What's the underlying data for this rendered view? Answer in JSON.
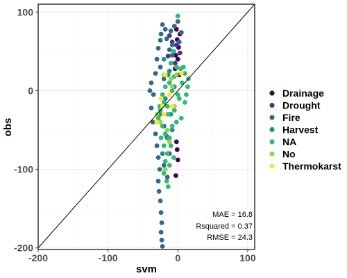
{
  "chart_data": {
    "type": "scatter",
    "title": "",
    "xlabel": "svm",
    "ylabel": "obs",
    "xlim": [
      -200,
      110
    ],
    "ylim": [
      -202,
      110
    ],
    "x_ticks": [
      -200,
      -100,
      0,
      100
    ],
    "y_ticks": [
      -200,
      -100,
      0,
      100
    ],
    "grid": true,
    "reference_line": "y = x",
    "legend_position": "right",
    "stats": [
      "MAE = 16.8",
      "Rsquared = 0.37",
      "RMSE = 24.3"
    ],
    "series": [
      {
        "name": "Drainage",
        "color": "#440154",
        "points": [
          [
            -2,
            78
          ],
          [
            3,
            72
          ],
          [
            -1,
            65
          ],
          [
            1,
            55
          ],
          [
            -3,
            45
          ],
          [
            0,
            40
          ],
          [
            -4,
            28
          ],
          [
            2,
            20
          ],
          [
            -2,
            -65
          ],
          [
            0,
            -88
          ],
          [
            -1,
            -75
          ],
          [
            -3,
            -108
          ]
        ]
      },
      {
        "name": "Drought",
        "color": "#443A83",
        "points": [
          [
            -12,
            70
          ],
          [
            -8,
            62
          ],
          [
            -6,
            50
          ],
          [
            -14,
            44
          ],
          [
            -4,
            35
          ],
          [
            -20,
            -45
          ],
          [
            -16,
            -58
          ],
          [
            -2,
            58
          ],
          [
            3,
            48
          ]
        ]
      },
      {
        "name": "Fire",
        "color": "#31688E",
        "points": [
          [
            -22,
            84
          ],
          [
            -18,
            78
          ],
          [
            -24,
            72
          ],
          [
            -25,
            64
          ],
          [
            -28,
            54
          ],
          [
            -16,
            66
          ],
          [
            -10,
            76
          ],
          [
            -5,
            82
          ],
          [
            0,
            88
          ],
          [
            5,
            74
          ],
          [
            2,
            62
          ],
          [
            -8,
            58
          ],
          [
            -12,
            52
          ],
          [
            -30,
            40
          ],
          [
            -32,
            22
          ],
          [
            -38,
            10
          ],
          [
            -40,
            0
          ],
          [
            -35,
            -5
          ],
          [
            -38,
            -22
          ],
          [
            -36,
            -40
          ],
          [
            -32,
            -55
          ],
          [
            -30,
            -70
          ],
          [
            -28,
            -85
          ],
          [
            -26,
            -100
          ],
          [
            -28,
            -115
          ],
          [
            -27,
            -128
          ],
          [
            -25,
            -140
          ],
          [
            -24,
            -155
          ],
          [
            -23,
            -168
          ],
          [
            -24,
            -180
          ],
          [
            -23,
            -190
          ],
          [
            -22,
            -198
          ],
          [
            -15,
            -110
          ],
          [
            -20,
            -95
          ],
          [
            -12,
            -80
          ],
          [
            -25,
            30
          ],
          [
            -20,
            15
          ],
          [
            -8,
            45
          ]
        ]
      },
      {
        "name": "Harvest",
        "color": "#21908C",
        "points": [
          [
            -20,
            40
          ],
          [
            -14,
            20
          ],
          [
            -18,
            -10
          ],
          [
            -10,
            -30
          ],
          [
            -15,
            -60
          ],
          [
            -22,
            -80
          ],
          [
            -8,
            -50
          ],
          [
            -5,
            5
          ],
          [
            -25,
            -30
          ],
          [
            -12,
            25
          ]
        ]
      },
      {
        "name": "NA",
        "color": "#35B779",
        "points": [
          [
            0,
            95
          ],
          [
            -6,
            50
          ],
          [
            -10,
            35
          ],
          [
            -2,
            30
          ],
          [
            4,
            28
          ],
          [
            8,
            30
          ],
          [
            10,
            22
          ],
          [
            15,
            15
          ],
          [
            14,
            5
          ],
          [
            12,
            -5
          ],
          [
            10,
            -15
          ],
          [
            -5,
            18
          ],
          [
            -12,
            10
          ],
          [
            -18,
            5
          ],
          [
            -22,
            -5
          ],
          [
            -20,
            -15
          ],
          [
            -15,
            -20
          ],
          [
            -25,
            -25
          ],
          [
            -28,
            -35
          ],
          [
            -22,
            -45
          ],
          [
            -18,
            -55
          ],
          [
            -12,
            -60
          ],
          [
            -20,
            -70
          ],
          [
            -15,
            -80
          ],
          [
            -18,
            -90
          ],
          [
            -12,
            -95
          ],
          [
            -20,
            -105
          ],
          [
            -16,
            -115
          ],
          [
            -14,
            -122
          ],
          [
            -8,
            -45
          ],
          [
            -2,
            -40
          ],
          [
            5,
            -35
          ],
          [
            -5,
            -25
          ],
          [
            2,
            -10
          ],
          [
            6,
            10
          ],
          [
            -14,
            -30
          ],
          [
            -24,
            -60
          ],
          [
            -10,
            -70
          ],
          [
            -6,
            -85
          ],
          [
            -26,
            -20
          ],
          [
            -8,
            0
          ],
          [
            0,
            -5
          ]
        ]
      },
      {
        "name": "No",
        "color": "#8FD744",
        "points": [
          [
            -20,
            20
          ],
          [
            -10,
            15
          ],
          [
            -5,
            -20
          ],
          [
            -15,
            -50
          ],
          [
            -8,
            5
          ],
          [
            -25,
            -40
          ],
          [
            -2,
            20
          ],
          [
            -30,
            -30
          ],
          [
            -18,
            -100
          ],
          [
            -12,
            -65
          ]
        ]
      },
      {
        "name": "Thermokarst",
        "color": "#FDE725",
        "points": [
          [
            -18,
            20
          ],
          [
            -22,
            -20
          ],
          [
            -30,
            -40
          ],
          [
            -12,
            -5
          ],
          [
            -20,
            -30
          ],
          [
            5,
            22
          ],
          [
            -24,
            -10
          ],
          [
            -8,
            -20
          ]
        ]
      }
    ]
  }
}
